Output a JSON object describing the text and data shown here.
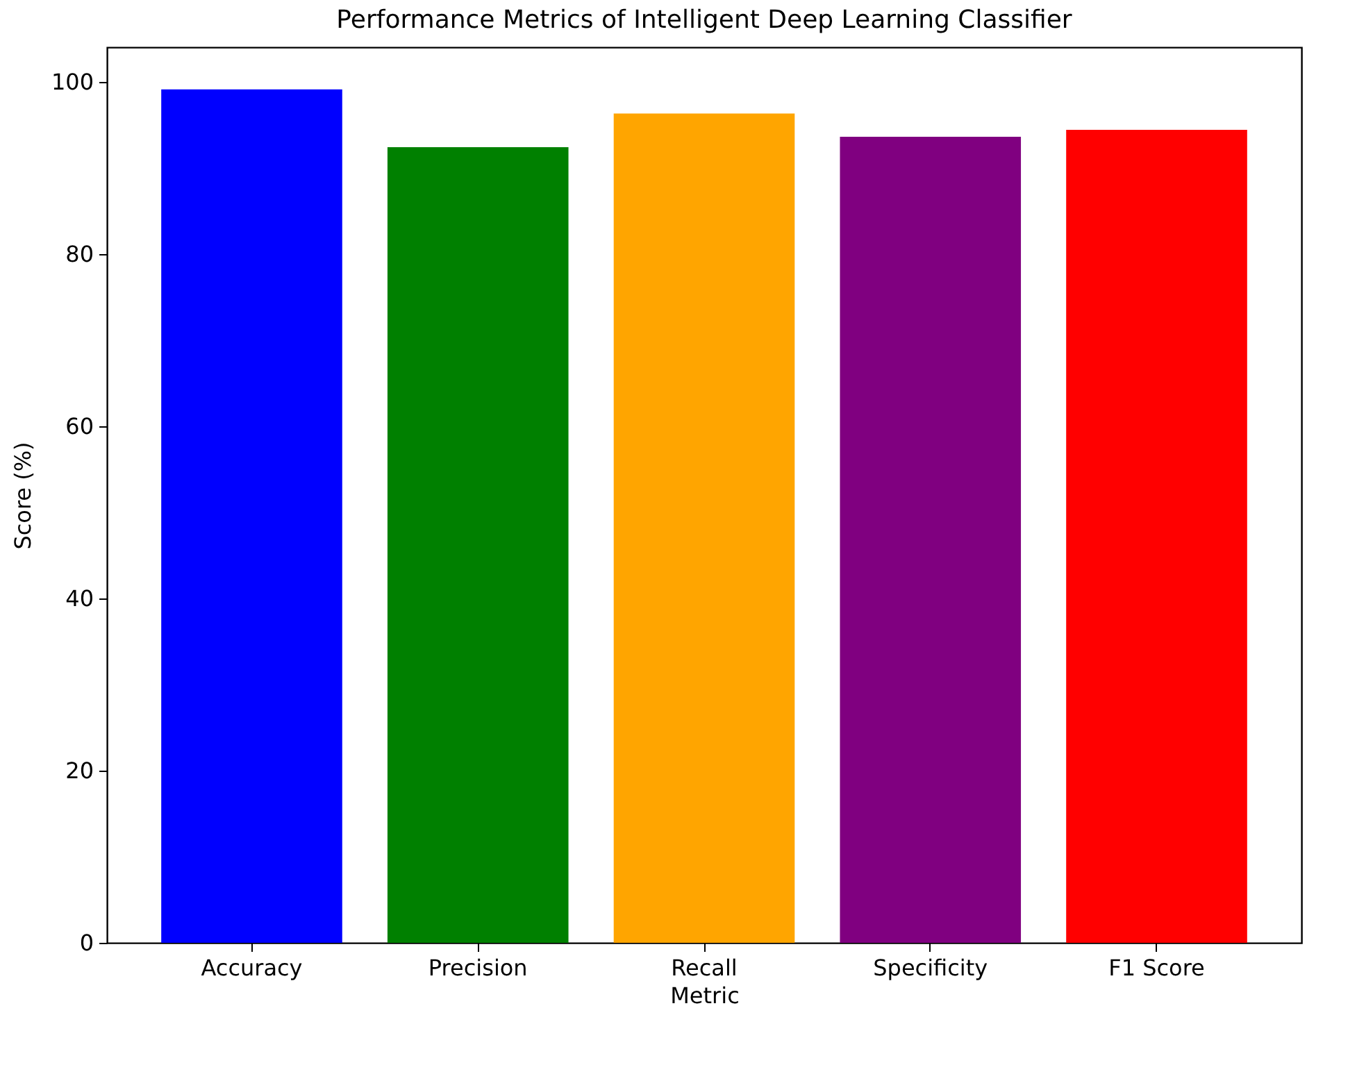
{
  "chart_data": {
    "type": "bar",
    "title": "Performance Metrics of Intelligent Deep Learning Classifier",
    "xlabel": "Metric",
    "ylabel": "Score (%)",
    "categories": [
      "Accuracy",
      "Precision",
      "Recall",
      "Specificity",
      "F1 Score"
    ],
    "values": [
      99.1,
      92.4,
      96.3,
      93.6,
      94.4
    ],
    "colors": [
      "#0000ff",
      "#008000",
      "#ffa500",
      "#800080",
      "#ff0000"
    ],
    "ylim": [
      0,
      104
    ],
    "yticks": [
      0,
      20,
      40,
      60,
      80,
      100
    ],
    "grid": false,
    "legend": false
  }
}
